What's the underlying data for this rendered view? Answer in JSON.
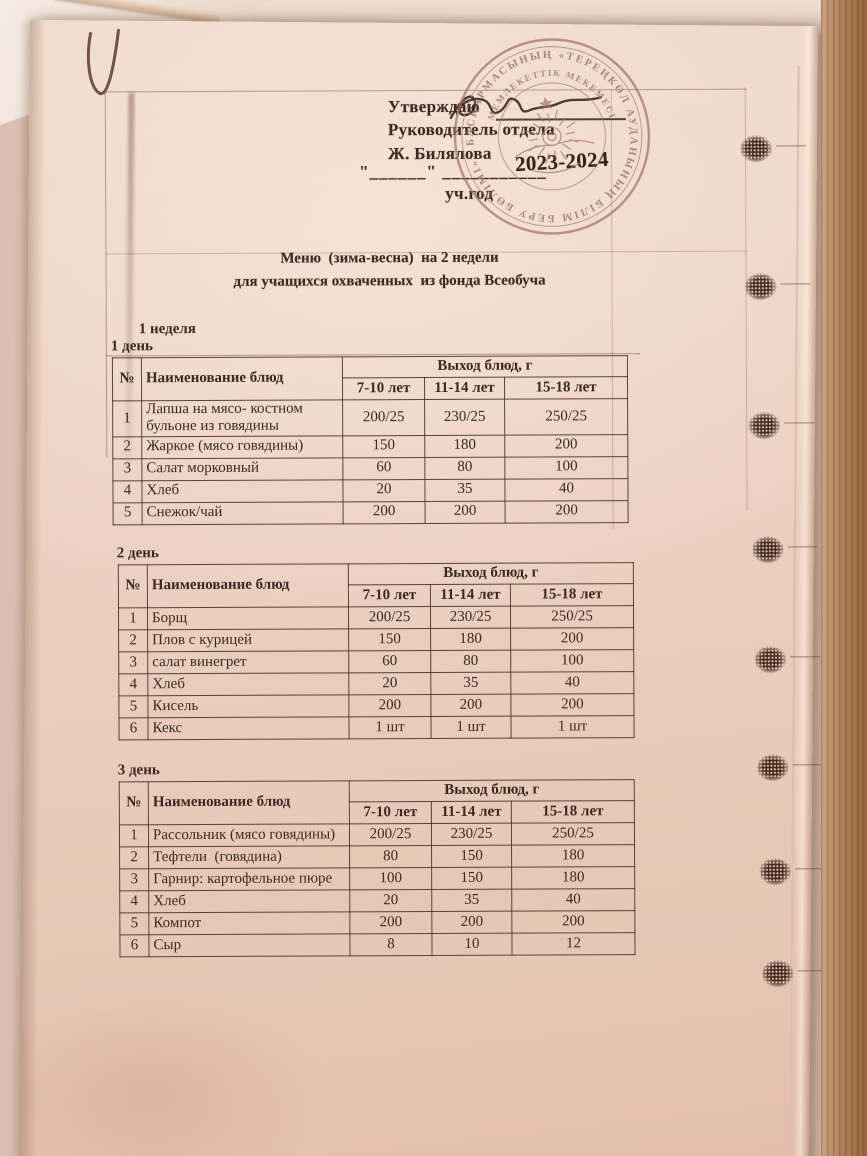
{
  "colors": {
    "paper": "#ecd2c2",
    "ink": "#3a2a22",
    "stamp": "#a5766a",
    "seal": "#3a2114",
    "wood": "#b28059"
  },
  "document": {
    "header": {
      "approve_label": "Утверждаю",
      "role_line": "Руководитель отдела",
      "name_line": "Ж. Билялова",
      "date_line": "\"______\" ___________",
      "years": "2023-2024",
      "year_suffix": "уч.год"
    },
    "title_line1": "Меню  (зима-весна)  на 2 недели",
    "title_line2": "для учащихся охваченных  из фонда Всеобуча",
    "week_label": "1 неделя",
    "stamp": {
      "ring_text": "БАСҚАРМАСЫНЫҢ «ТЕРЕҢКӨЛ АУДАНЫНЫҢ БІЛІМ БЕРУ БӨЛІМІ»",
      "inner_ring_text": "МЕМЛЕКЕТТІК МЕКЕМЕСІ"
    },
    "table_header": {
      "no": "№",
      "name": "Наименование блюд",
      "group": "Выход блюд, г",
      "ages": [
        "7-10 лет",
        "11-14 лет",
        "15-18 лет"
      ]
    },
    "tables": [
      {
        "day_label": "1 день",
        "rows": [
          [
            "1",
            "Лапша на мясо- костном бульоне из говядины",
            "200/25",
            "230/25",
            "250/25"
          ],
          [
            "2",
            "Жаркое (мясо говядины)",
            "150",
            "180",
            "200"
          ],
          [
            "3",
            "Салат морковный",
            "60",
            "80",
            "100"
          ],
          [
            "4",
            "Хлеб",
            "20",
            "35",
            "40"
          ],
          [
            "5",
            "Снежок/чай",
            "200",
            "200",
            "200"
          ]
        ]
      },
      {
        "day_label": "2 день",
        "rows": [
          [
            "1",
            "Борщ",
            "200/25",
            "230/25",
            "250/25"
          ],
          [
            "2",
            "Плов с курицей",
            "150",
            "180",
            "200"
          ],
          [
            "3",
            "салат винегрет",
            "60",
            "80",
            "100"
          ],
          [
            "4",
            "Хлеб",
            "20",
            "35",
            "40"
          ],
          [
            "5",
            "Кисель",
            "200",
            "200",
            "200"
          ],
          [
            "6",
            "Кекс",
            "1 шт",
            "1 шт",
            "1 шт"
          ]
        ]
      },
      {
        "day_label": "3 день",
        "rows": [
          [
            "1",
            "Рассольник (мясо говядины)",
            "200/25",
            "230/25",
            "250/25"
          ],
          [
            "2",
            "Тефтели  (говядина)",
            "80",
            "150",
            "180"
          ],
          [
            "3",
            "Гарнир: картофельное пюре",
            "100",
            "150",
            "180"
          ],
          [
            "4",
            "Хлеб",
            "20",
            "35",
            "40"
          ],
          [
            "5",
            "Компот",
            "200",
            "200",
            "200"
          ],
          [
            "6",
            "Сыр",
            "8",
            "10",
            "12"
          ]
        ]
      }
    ]
  }
}
